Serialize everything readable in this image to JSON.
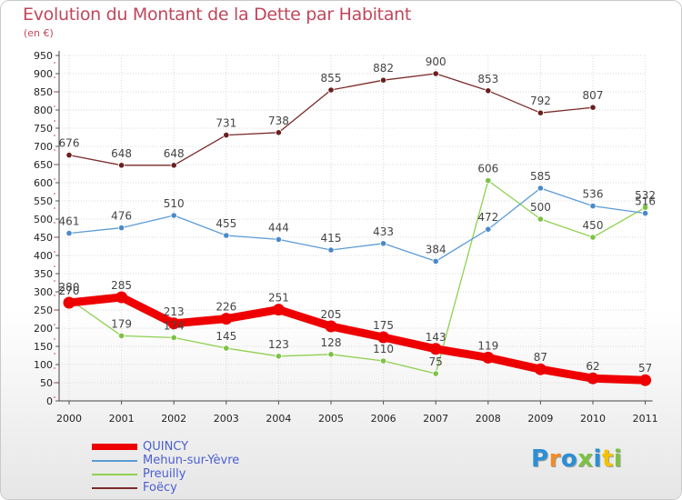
{
  "chart_data": {
    "type": "line",
    "title": "Evolution du Montant de la Dette par Habitant",
    "subtitle": "(en €)",
    "x": [
      "2000",
      "2001",
      "2002",
      "2003",
      "2004",
      "2005",
      "2006",
      "2007",
      "2008",
      "2009",
      "2010",
      "2011"
    ],
    "ylim": [
      0,
      950
    ],
    "yticks": [
      0,
      50,
      100,
      150,
      200,
      250,
      300,
      350,
      400,
      450,
      500,
      550,
      600,
      650,
      700,
      750,
      800,
      850,
      900,
      950
    ],
    "grid": true,
    "legend_position": "bottom-left",
    "series": [
      {
        "name": "QUINCY",
        "color": "#ee0000",
        "values": [
          270,
          285,
          213,
          226,
          251,
          205,
          175,
          143,
          119,
          87,
          62,
          57
        ]
      },
      {
        "name": "Mehun-sur-Yèvre",
        "color": "#5b9bd5",
        "values": [
          461,
          476,
          510,
          455,
          444,
          415,
          433,
          384,
          472,
          585,
          536,
          516
        ]
      },
      {
        "name": "Preuilly",
        "color": "#8fd14f",
        "values": [
          280,
          179,
          174,
          145,
          123,
          128,
          110,
          75,
          606,
          500,
          450,
          532
        ]
      },
      {
        "name": "Foëcy",
        "color": "#7b2a2a",
        "values": [
          676,
          648,
          648,
          731,
          738,
          855,
          882,
          900,
          853,
          792,
          807,
          null
        ]
      }
    ]
  },
  "logo": {
    "letters": [
      "P",
      "r",
      "o",
      "x",
      "i",
      "t",
      "i"
    ],
    "colors": [
      "#2b8fd6",
      "#f28c28",
      "#2b8fd6",
      "#7cc242",
      "#2b8fd6",
      "#f2c200",
      "#7cc242"
    ]
  }
}
